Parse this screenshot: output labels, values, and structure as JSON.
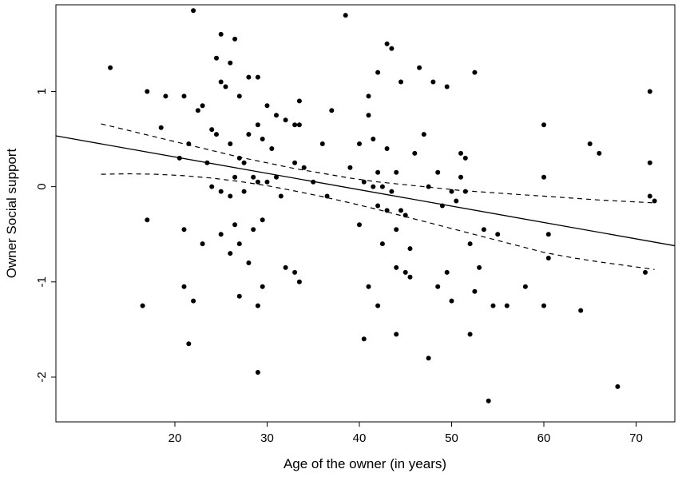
{
  "chart_data": {
    "type": "scatter",
    "title": "",
    "xlabel": "Age of the owner (in years)",
    "ylabel": "Owner Social support",
    "xlim": [
      7.1,
      74.2
    ],
    "ylim": [
      -2.47,
      1.91
    ],
    "x_ticks": [
      20,
      30,
      40,
      50,
      60,
      70
    ],
    "y_ticks": [
      -2,
      -1,
      0,
      1
    ],
    "grid": false,
    "legend": "none",
    "point_color": "#000000",
    "line_color": "#000000",
    "background": "#ffffff",
    "points": [
      [
        13,
        1.25
      ],
      [
        17,
        1.0
      ],
      [
        17,
        -0.35
      ],
      [
        16.5,
        -1.25
      ],
      [
        18.5,
        0.62
      ],
      [
        19,
        0.95
      ],
      [
        20.5,
        0.3
      ],
      [
        21,
        0.95
      ],
      [
        21,
        -0.45
      ],
      [
        21,
        -1.05
      ],
      [
        21.5,
        0.45
      ],
      [
        21.5,
        -1.65
      ],
      [
        22,
        1.85
      ],
      [
        22,
        -1.2
      ],
      [
        22.5,
        0.8
      ],
      [
        23,
        0.85
      ],
      [
        23,
        -0.6
      ],
      [
        23.5,
        0.25
      ],
      [
        24,
        0.6
      ],
      [
        24,
        0.0
      ],
      [
        24.5,
        1.35
      ],
      [
        24.5,
        0.55
      ],
      [
        25,
        1.6
      ],
      [
        25,
        1.1
      ],
      [
        25,
        -0.05
      ],
      [
        25,
        -0.5
      ],
      [
        25.5,
        1.05
      ],
      [
        26,
        1.3
      ],
      [
        26,
        0.45
      ],
      [
        26,
        -0.1
      ],
      [
        26,
        -0.7
      ],
      [
        26.5,
        1.55
      ],
      [
        26.5,
        0.1
      ],
      [
        26.5,
        -0.4
      ],
      [
        27,
        0.95
      ],
      [
        27,
        0.3
      ],
      [
        27,
        -0.6
      ],
      [
        27,
        -1.15
      ],
      [
        27.5,
        0.25
      ],
      [
        27.5,
        -0.05
      ],
      [
        28,
        1.15
      ],
      [
        28,
        0.55
      ],
      [
        28,
        -0.8
      ],
      [
        28.5,
        0.1
      ],
      [
        28.5,
        -0.45
      ],
      [
        29,
        1.15
      ],
      [
        29,
        0.65
      ],
      [
        29,
        0.05
      ],
      [
        29,
        -1.25
      ],
      [
        29,
        -1.95
      ],
      [
        29.5,
        0.5
      ],
      [
        29.5,
        -0.35
      ],
      [
        29.5,
        -1.05
      ],
      [
        30,
        0.85
      ],
      [
        30,
        0.05
      ],
      [
        30.5,
        0.4
      ],
      [
        31,
        0.75
      ],
      [
        31,
        0.1
      ],
      [
        31.5,
        -0.1
      ],
      [
        32,
        0.7
      ],
      [
        32,
        -0.85
      ],
      [
        33,
        0.65
      ],
      [
        33,
        0.25
      ],
      [
        33,
        -0.9
      ],
      [
        33.5,
        0.9
      ],
      [
        33.5,
        0.65
      ],
      [
        33.5,
        -1.0
      ],
      [
        34,
        0.2
      ],
      [
        35,
        0.05
      ],
      [
        36,
        0.45
      ],
      [
        36.5,
        -0.1
      ],
      [
        37,
        0.8
      ],
      [
        38.5,
        1.8
      ],
      [
        39,
        0.2
      ],
      [
        40,
        0.45
      ],
      [
        40,
        -0.4
      ],
      [
        40.5,
        0.05
      ],
      [
        40.5,
        -1.6
      ],
      [
        41,
        0.95
      ],
      [
        41,
        0.75
      ],
      [
        41,
        -1.05
      ],
      [
        41.5,
        0.5
      ],
      [
        41.5,
        0.0
      ],
      [
        42,
        1.2
      ],
      [
        42,
        0.15
      ],
      [
        42,
        -0.2
      ],
      [
        42,
        -1.25
      ],
      [
        42.5,
        0.0
      ],
      [
        42.5,
        -0.6
      ],
      [
        43,
        1.5
      ],
      [
        43,
        0.4
      ],
      [
        43,
        -0.25
      ],
      [
        43.5,
        1.45
      ],
      [
        43.5,
        -0.05
      ],
      [
        44,
        0.15
      ],
      [
        44,
        -0.45
      ],
      [
        44,
        -0.85
      ],
      [
        44,
        -1.55
      ],
      [
        44.5,
        1.1
      ],
      [
        44.5,
        -0.25
      ],
      [
        45,
        -0.3
      ],
      [
        45,
        -0.9
      ],
      [
        45.5,
        -0.65
      ],
      [
        45.5,
        -0.95
      ],
      [
        46,
        0.35
      ],
      [
        46.5,
        1.25
      ],
      [
        47,
        0.55
      ],
      [
        47.5,
        0.0
      ],
      [
        47.5,
        -1.8
      ],
      [
        48,
        1.1
      ],
      [
        48.5,
        0.15
      ],
      [
        48.5,
        -1.05
      ],
      [
        49,
        -0.2
      ],
      [
        49.5,
        1.05
      ],
      [
        49.5,
        -0.9
      ],
      [
        50,
        -0.05
      ],
      [
        50,
        -1.2
      ],
      [
        50.5,
        -0.15
      ],
      [
        51,
        0.35
      ],
      [
        51,
        0.1
      ],
      [
        51.5,
        0.3
      ],
      [
        51.5,
        -0.05
      ],
      [
        52,
        -0.6
      ],
      [
        52,
        -1.55
      ],
      [
        52.5,
        1.2
      ],
      [
        52.5,
        -1.1
      ],
      [
        53,
        -0.85
      ],
      [
        53.5,
        -0.45
      ],
      [
        54,
        -2.25
      ],
      [
        54.5,
        -1.25
      ],
      [
        55,
        -0.5
      ],
      [
        56,
        -1.25
      ],
      [
        58,
        -1.05
      ],
      [
        60,
        0.65
      ],
      [
        60,
        0.1
      ],
      [
        60,
        -1.25
      ],
      [
        60.5,
        -0.5
      ],
      [
        60.5,
        -0.75
      ],
      [
        64,
        -1.3
      ],
      [
        65,
        0.45
      ],
      [
        66,
        0.35
      ],
      [
        68,
        -2.1
      ],
      [
        71,
        -0.9
      ],
      [
        71.5,
        1.0
      ],
      [
        71.5,
        0.25
      ],
      [
        71.5,
        -0.1
      ],
      [
        72,
        -0.15
      ]
    ],
    "regression_line": {
      "slope": -0.0172,
      "intercept": 0.656
    },
    "confidence_band": {
      "x": [
        12,
        15,
        18,
        21,
        24,
        27,
        30,
        33,
        36,
        39,
        42,
        45,
        48,
        51,
        54,
        57,
        60,
        63,
        66,
        69,
        72
      ],
      "upper": [
        0.66,
        0.59,
        0.52,
        0.45,
        0.38,
        0.31,
        0.25,
        0.19,
        0.14,
        0.09,
        0.05,
        0.02,
        -0.01,
        -0.04,
        -0.06,
        -0.08,
        -0.1,
        -0.12,
        -0.14,
        -0.155,
        -0.17
      ],
      "lower": [
        0.13,
        0.135,
        0.13,
        0.115,
        0.09,
        0.055,
        0.01,
        -0.045,
        -0.105,
        -0.17,
        -0.24,
        -0.315,
        -0.39,
        -0.465,
        -0.54,
        -0.615,
        -0.69,
        -0.745,
        -0.79,
        -0.83,
        -0.87
      ]
    }
  }
}
